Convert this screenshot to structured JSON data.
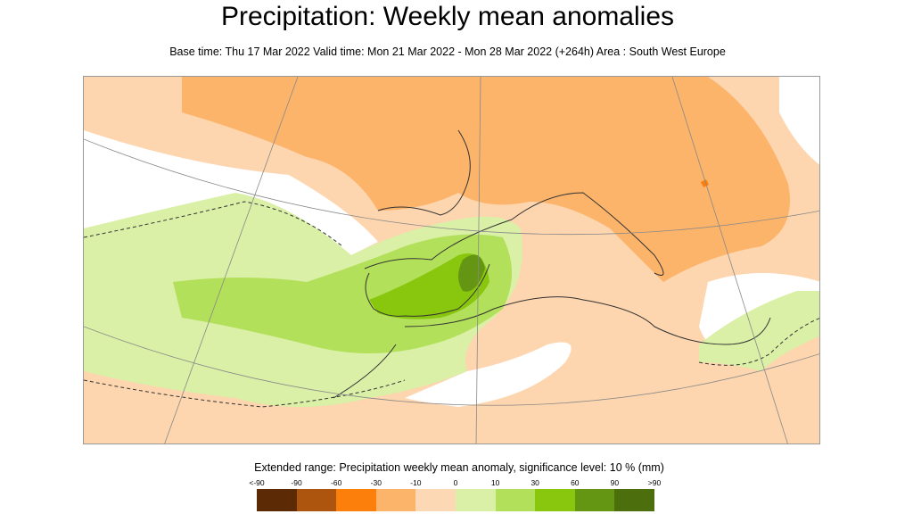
{
  "title": "Precipitation: Weekly mean anomalies",
  "subtitle": "Base time: Thu 17 Mar 2022 Valid time: Mon 21 Mar 2022 - Mon 28 Mar 2022 (+264h) Area : South West Europe",
  "map": {
    "area": "South West Europe",
    "dominant_pattern": "dry anomaly over France, Italy, Balkans, North Africa; wet anomaly over Iberia and Atlantic to the west"
  },
  "legend": {
    "title": "Extended range: Precipitation weekly mean anomaly, significance level: 10 % (mm)",
    "labels": [
      "<-90",
      "-90",
      "-60",
      "-30",
      "-10",
      "0",
      "10",
      "30",
      "60",
      "90",
      ">90"
    ],
    "colors": [
      "#5c2a05",
      "#ad550f",
      "#fc7f0c",
      "#fcb46a",
      "#fcd8b4",
      "#daf0a6",
      "#b2e05a",
      "#89c70f",
      "#659613",
      "#4d6e0c"
    ]
  }
}
